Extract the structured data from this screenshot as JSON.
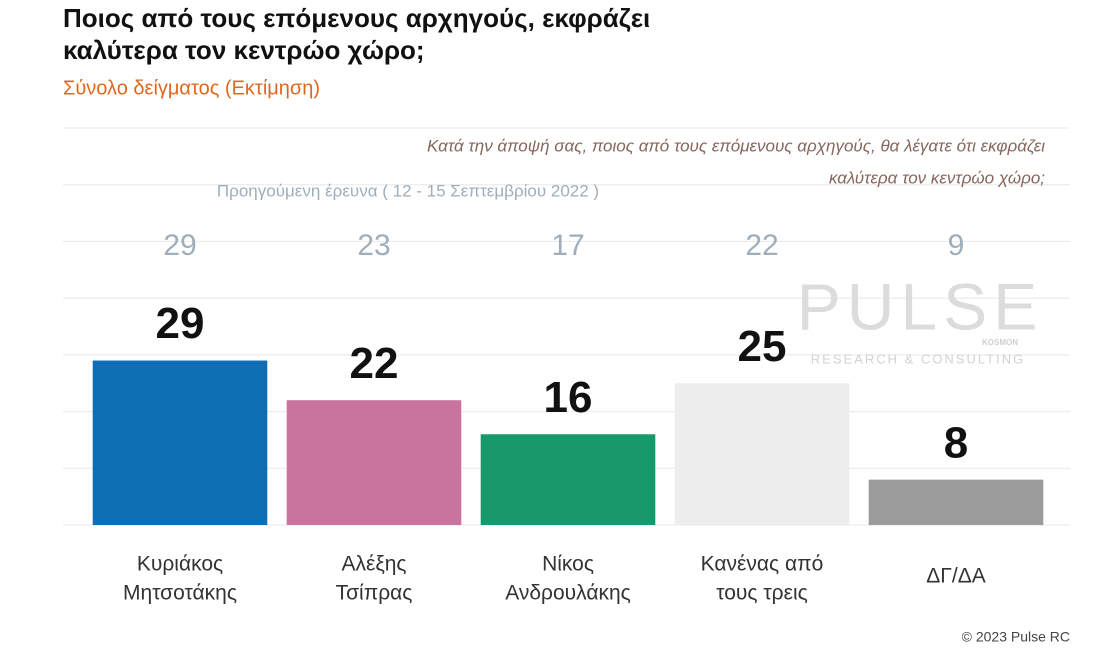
{
  "chart_data": {
    "type": "bar",
    "title": [
      "Ποιος από τους επόμενους αρχηγούς, εκφράζει",
      "καλύτερα τον κεντρώο χώρο;"
    ],
    "subtitle": "Σύνολο δείγματος   (Εκτίμηση)",
    "question": [
      "Κατά την άποψή σας, ποιος από τους επόμενους αρχηγούς, θα λέγατε ότι εκφράζει",
      "καλύτερα τον κεντρώο χώρο;"
    ],
    "categories": [
      [
        "Κυριάκος",
        "Μητσοτάκης"
      ],
      [
        "Αλέξης",
        "Τσίπρας"
      ],
      [
        "Νίκος",
        "Ανδρουλάκης"
      ],
      [
        "Κανένας από",
        "τους τρεις"
      ],
      [
        "ΔΓ/ΔΑ"
      ]
    ],
    "values": [
      29,
      22,
      16,
      25,
      8
    ],
    "colors": [
      "#0f6db3",
      "#c9739f",
      "#17996b",
      "#ededed",
      "#9b9b9b"
    ],
    "previous": {
      "label": "Προηγούμενη έρευνα  ( 12 - 15 Σεπτεμβρίου  2022 )",
      "values": [
        29,
        23,
        17,
        22,
        9
      ],
      "color": "#9eaeba"
    },
    "ylim": [
      0,
      70
    ],
    "yticks": [
      0,
      10,
      20,
      30,
      40,
      50,
      60,
      70
    ],
    "grid": true
  },
  "watermark": {
    "brand": "PULSE",
    "partner": "KOSMON",
    "tagline": "RESEARCH & CONSULTING"
  },
  "footer": "© 2023 Pulse RC"
}
